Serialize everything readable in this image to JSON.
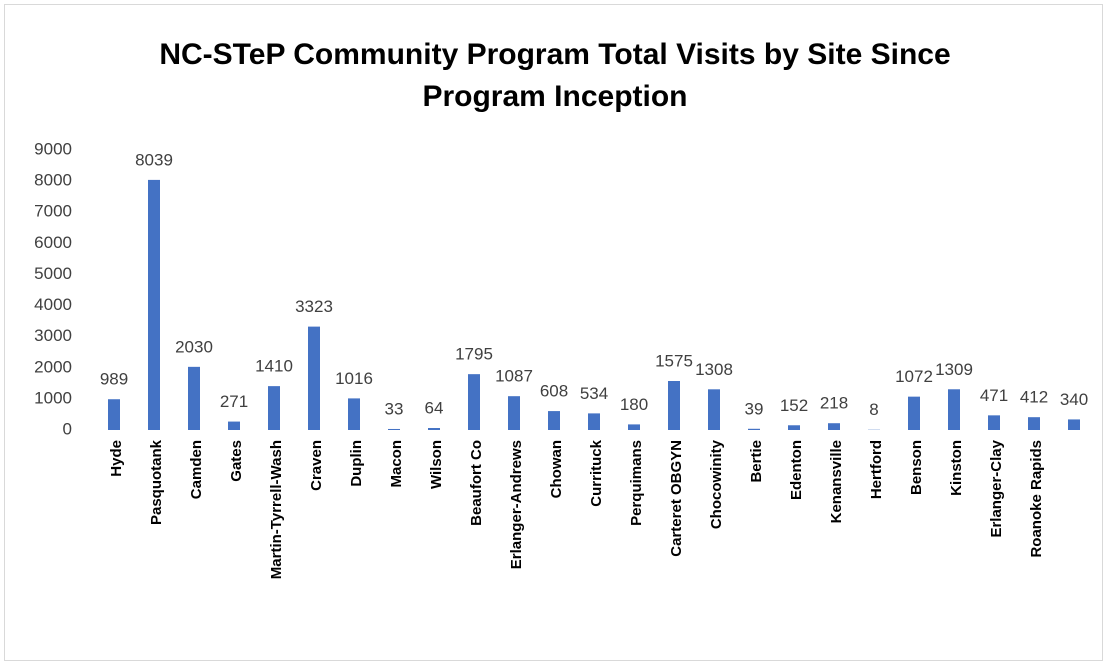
{
  "chart_data": {
    "type": "bar",
    "title": "NC-STeP Community Program Total Visits by Site Since Program Inception",
    "categories": [
      "Hyde",
      "Pasquotank",
      "Camden",
      "Gates",
      "Martin-Tyrrell-Wash",
      "Craven",
      "Duplin",
      "Macon",
      "Wilson",
      "Beaufort Co",
      "Erlanger-Andrews",
      "Chowan",
      "Currituck",
      "Perquimans",
      "Carteret OBGYN",
      "Chocowinity",
      "Bertie",
      "Edenton",
      "Kenansville",
      "Hertford",
      "Benson",
      "Kinston",
      "Erlanger-Clay",
      "Roanoke Rapids",
      null
    ],
    "values": [
      989,
      8039,
      2030,
      271,
      1410,
      3323,
      1016,
      33,
      64,
      1795,
      1087,
      608,
      534,
      180,
      1575,
      1308,
      39,
      152,
      218,
      8,
      1072,
      1309,
      471,
      412,
      340
    ],
    "color": "#4472c4",
    "ylim": [
      0,
      9000
    ],
    "yticks": [
      0,
      1000,
      2000,
      3000,
      4000,
      5000,
      6000,
      7000,
      8000,
      9000
    ],
    "grid": false
  }
}
